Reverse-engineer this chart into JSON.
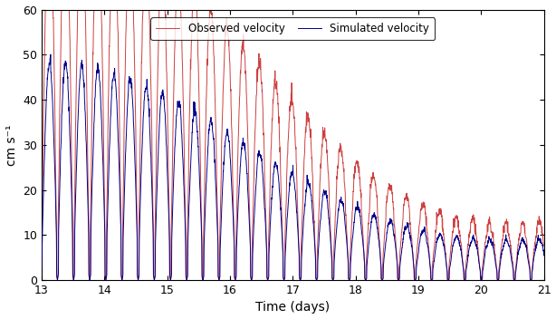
{
  "xlim": [
    13,
    21
  ],
  "ylim": [
    0,
    60
  ],
  "xticks": [
    13,
    14,
    15,
    16,
    17,
    18,
    19,
    20,
    21
  ],
  "yticks": [
    0,
    10,
    20,
    30,
    40,
    50,
    60
  ],
  "xlabel": "Time (days)",
  "ylabel": "cm s⁻¹",
  "simulated_color": "#00008B",
  "observed_color": "#CD4040",
  "simulated_label": "Simulated velocity",
  "observed_label": "Observed velocity",
  "simulated_linewidth": 0.7,
  "observed_linewidth": 0.7,
  "background_color": "#FFFFFF",
  "legend_fontsize": 8.5,
  "tick_fontsize": 9,
  "figsize": [
    6.14,
    3.52
  ],
  "dpi": 100
}
